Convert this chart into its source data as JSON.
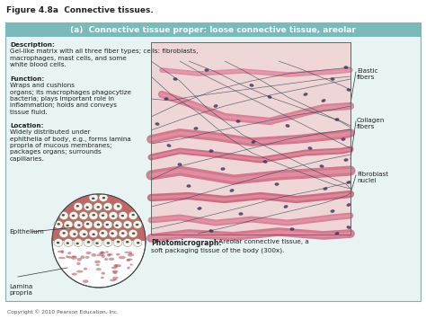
{
  "fig_title": "Figure 4.8a  Connective tissues.",
  "panel_title": "(a)  Connective tissue proper: loose connective tissue, areolar",
  "panel_title_bg": "#7bbaba",
  "panel_bg": "#e8f4f4",
  "outer_bg": "#ffffff",
  "description_bold": "Description:",
  "description_text": " Gel-like matrix with all\nthree fiber types; cells: fibroblasts,\nmacrophages, mast cells, and some\nwhite blood cells.",
  "function_bold": "Function:",
  "function_text": " Wraps and cushions\norgans; its macrophages phagocytize\nbacteria; plays important role in\ninflammation; holds and conveys\ntissue fluid.",
  "location_bold": "Location:",
  "location_text": " Widely distributed under\nephithelia of body, e.g., forms lamina\npropria of mucous membranes;\npackages organs; surrounds\ncapillaries.",
  "photomicrograph_bold": "Photomicrograph:",
  "photomicrograph_text": " Areolar connective tissue, a\nsoft packaging tissue of the body (300x).",
  "label_elastic": "Elastic\nfibers",
  "label_collagen": "Collagen\nfibers",
  "label_fibroblast": "Fibroblast\nnuclei",
  "label_epithelium": "Epithelium",
  "label_lamina": "Lamina\npropria",
  "copyright": "Copyright © 2010 Pearson Education, Inc.",
  "text_color": "#222222",
  "panel_border": "#aacccc",
  "photo_border": "#666666"
}
